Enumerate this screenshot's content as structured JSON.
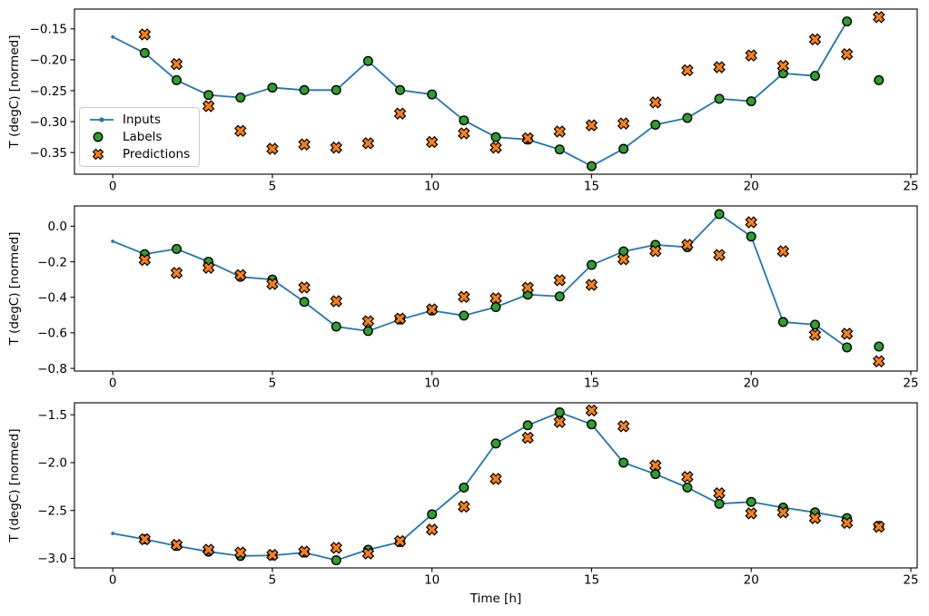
{
  "figure": {
    "xlabel": "Time [h]",
    "ylabel": "T (degC) [normed]",
    "legend": {
      "inputs": "Inputs",
      "labels": "Labels",
      "predictions": "Predictions"
    },
    "colors": {
      "inputs": "#1f77b4",
      "labels": "#2ca02c",
      "predictions": "#ff7f0e",
      "edge": "#000000"
    }
  },
  "chart_data": [
    {
      "type": "line",
      "panel": 1,
      "ylabel": "T (degC) [normed]",
      "xlim": [
        -1.2,
        25.2
      ],
      "ylim": [
        -0.385,
        -0.118
      ],
      "xticks": [
        0,
        5,
        10,
        15,
        20,
        25
      ],
      "xtick_labels": [
        "0",
        "5",
        "10",
        "15",
        "20",
        "25"
      ],
      "yticks": [
        -0.15,
        -0.2,
        -0.25,
        -0.3,
        -0.35
      ],
      "ytick_labels": [
        "−0.15",
        "−0.20",
        "−0.25",
        "−0.30",
        "−0.35"
      ],
      "legend_position": "left",
      "series": [
        {
          "name": "Inputs",
          "type": "line",
          "marker": "dot",
          "color": "#1f77b4",
          "x": [
            0,
            1,
            2,
            3,
            4,
            5,
            6,
            7,
            8,
            9,
            10,
            11,
            12,
            13,
            14,
            15,
            16,
            17,
            18,
            19,
            20,
            21,
            22,
            23
          ],
          "y": [
            -0.163,
            -0.189,
            -0.233,
            -0.257,
            -0.261,
            -0.245,
            -0.249,
            -0.249,
            -0.202,
            -0.249,
            -0.256,
            -0.298,
            -0.325,
            -0.329,
            -0.345,
            -0.372,
            -0.344,
            -0.305,
            -0.294,
            -0.263,
            -0.267,
            -0.222,
            -0.226,
            -0.138
          ]
        },
        {
          "name": "Labels",
          "type": "scatter",
          "marker": "circle",
          "color": "#2ca02c",
          "x": [
            1,
            2,
            3,
            4,
            5,
            6,
            7,
            8,
            9,
            10,
            11,
            12,
            13,
            14,
            15,
            16,
            17,
            18,
            19,
            20,
            21,
            22,
            23,
            24
          ],
          "y": [
            -0.189,
            -0.233,
            -0.257,
            -0.261,
            -0.245,
            -0.249,
            -0.249,
            -0.202,
            -0.249,
            -0.256,
            -0.298,
            -0.325,
            -0.329,
            -0.345,
            -0.372,
            -0.344,
            -0.305,
            -0.294,
            -0.263,
            -0.267,
            -0.222,
            -0.226,
            -0.138,
            -0.233
          ]
        },
        {
          "name": "Predictions",
          "type": "scatter",
          "marker": "X",
          "color": "#ff7f0e",
          "x": [
            1,
            2,
            3,
            4,
            5,
            6,
            7,
            8,
            9,
            10,
            11,
            12,
            13,
            14,
            15,
            16,
            17,
            18,
            19,
            20,
            21,
            22,
            23,
            24
          ],
          "y": [
            -0.159,
            -0.207,
            -0.275,
            -0.315,
            -0.344,
            -0.337,
            -0.342,
            -0.335,
            -0.287,
            -0.333,
            -0.319,
            -0.342,
            -0.327,
            -0.316,
            -0.306,
            -0.303,
            -0.269,
            -0.217,
            -0.212,
            -0.193,
            -0.21,
            -0.167,
            -0.191,
            -0.131
          ]
        }
      ]
    },
    {
      "type": "line",
      "panel": 2,
      "ylabel": "T (degC) [normed]",
      "xlim": [
        -1.2,
        25.2
      ],
      "ylim": [
        -0.815,
        0.114
      ],
      "xticks": [
        0,
        5,
        10,
        15,
        20,
        25
      ],
      "xtick_labels": [
        "0",
        "5",
        "10",
        "15",
        "20",
        "25"
      ],
      "yticks": [
        0.0,
        -0.2,
        -0.4,
        -0.6,
        -0.8
      ],
      "ytick_labels": [
        "0.0",
        "−0.2",
        "−0.4",
        "−0.6",
        "−0.8"
      ],
      "series": [
        {
          "name": "Inputs",
          "type": "line",
          "marker": "dot",
          "color": "#1f77b4",
          "x": [
            0,
            1,
            2,
            3,
            4,
            5,
            6,
            7,
            8,
            9,
            10,
            11,
            12,
            13,
            14,
            15,
            16,
            17,
            18,
            19,
            20,
            21,
            22,
            23
          ],
          "y": [
            -0.085,
            -0.157,
            -0.128,
            -0.2,
            -0.285,
            -0.3,
            -0.426,
            -0.565,
            -0.59,
            -0.525,
            -0.475,
            -0.503,
            -0.455,
            -0.385,
            -0.395,
            -0.218,
            -0.142,
            -0.105,
            -0.118,
            0.068,
            -0.058,
            -0.539,
            -0.554,
            -0.682
          ]
        },
        {
          "name": "Labels",
          "type": "scatter",
          "marker": "circle",
          "color": "#2ca02c",
          "x": [
            1,
            2,
            3,
            4,
            5,
            6,
            7,
            8,
            9,
            10,
            11,
            12,
            13,
            14,
            15,
            16,
            17,
            18,
            19,
            20,
            21,
            22,
            23,
            24
          ],
          "y": [
            -0.157,
            -0.128,
            -0.2,
            -0.285,
            -0.3,
            -0.426,
            -0.565,
            -0.59,
            -0.525,
            -0.475,
            -0.503,
            -0.455,
            -0.385,
            -0.395,
            -0.218,
            -0.142,
            -0.105,
            -0.118,
            0.068,
            -0.058,
            -0.539,
            -0.554,
            -0.682,
            -0.677
          ]
        },
        {
          "name": "Predictions",
          "type": "scatter",
          "marker": "X",
          "color": "#ff7f0e",
          "x": [
            1,
            2,
            3,
            4,
            5,
            6,
            7,
            8,
            9,
            10,
            11,
            12,
            13,
            14,
            15,
            16,
            17,
            18,
            19,
            20,
            21,
            22,
            23,
            24
          ],
          "y": [
            -0.19,
            -0.263,
            -0.234,
            -0.275,
            -0.325,
            -0.345,
            -0.422,
            -0.535,
            -0.52,
            -0.468,
            -0.398,
            -0.406,
            -0.346,
            -0.304,
            -0.33,
            -0.186,
            -0.14,
            -0.105,
            -0.162,
            0.022,
            -0.141,
            -0.611,
            -0.605,
            -0.76
          ]
        }
      ]
    },
    {
      "type": "line",
      "panel": 3,
      "ylabel": "T (degC) [normed]",
      "xlabel": "Time [h]",
      "xlim": [
        -1.2,
        25.2
      ],
      "ylim": [
        -3.1,
        -1.375
      ],
      "xticks": [
        0,
        5,
        10,
        15,
        20,
        25
      ],
      "xtick_labels": [
        "0",
        "5",
        "10",
        "15",
        "20",
        "25"
      ],
      "yticks": [
        -1.5,
        -2.0,
        -2.5,
        -3.0
      ],
      "ytick_labels": [
        "−1.5",
        "−2.0",
        "−2.5",
        "−3.0"
      ],
      "series": [
        {
          "name": "Inputs",
          "type": "line",
          "marker": "dot",
          "color": "#1f77b4",
          "x": [
            0,
            1,
            2,
            3,
            4,
            5,
            6,
            7,
            8,
            9,
            10,
            11,
            12,
            13,
            14,
            15,
            16,
            17,
            18,
            19,
            20,
            21,
            22,
            23
          ],
          "y": [
            -2.74,
            -2.8,
            -2.87,
            -2.93,
            -2.975,
            -2.97,
            -2.94,
            -3.02,
            -2.91,
            -2.83,
            -2.54,
            -2.26,
            -1.8,
            -1.61,
            -1.475,
            -1.6,
            -2.0,
            -2.12,
            -2.26,
            -2.43,
            -2.41,
            -2.47,
            -2.52,
            -2.58
          ]
        },
        {
          "name": "Labels",
          "type": "scatter",
          "marker": "circle",
          "color": "#2ca02c",
          "x": [
            1,
            2,
            3,
            4,
            5,
            6,
            7,
            8,
            9,
            10,
            11,
            12,
            13,
            14,
            15,
            16,
            17,
            18,
            19,
            20,
            21,
            22,
            23,
            24
          ],
          "y": [
            -2.8,
            -2.87,
            -2.93,
            -2.975,
            -2.97,
            -2.94,
            -3.02,
            -2.91,
            -2.83,
            -2.54,
            -2.26,
            -1.8,
            -1.61,
            -1.475,
            -1.6,
            -2.0,
            -2.12,
            -2.26,
            -2.43,
            -2.41,
            -2.47,
            -2.52,
            -2.58,
            -2.66
          ]
        },
        {
          "name": "Predictions",
          "type": "scatter",
          "marker": "X",
          "color": "#ff7f0e",
          "x": [
            1,
            2,
            3,
            4,
            5,
            6,
            7,
            8,
            9,
            10,
            11,
            12,
            13,
            14,
            15,
            16,
            17,
            18,
            19,
            20,
            21,
            22,
            23,
            24
          ],
          "y": [
            -2.8,
            -2.86,
            -2.91,
            -2.94,
            -2.965,
            -2.93,
            -2.89,
            -2.95,
            -2.82,
            -2.7,
            -2.46,
            -2.17,
            -1.74,
            -1.575,
            -1.455,
            -1.62,
            -2.03,
            -2.15,
            -2.32,
            -2.53,
            -2.52,
            -2.58,
            -2.63,
            -2.67
          ]
        }
      ]
    }
  ]
}
